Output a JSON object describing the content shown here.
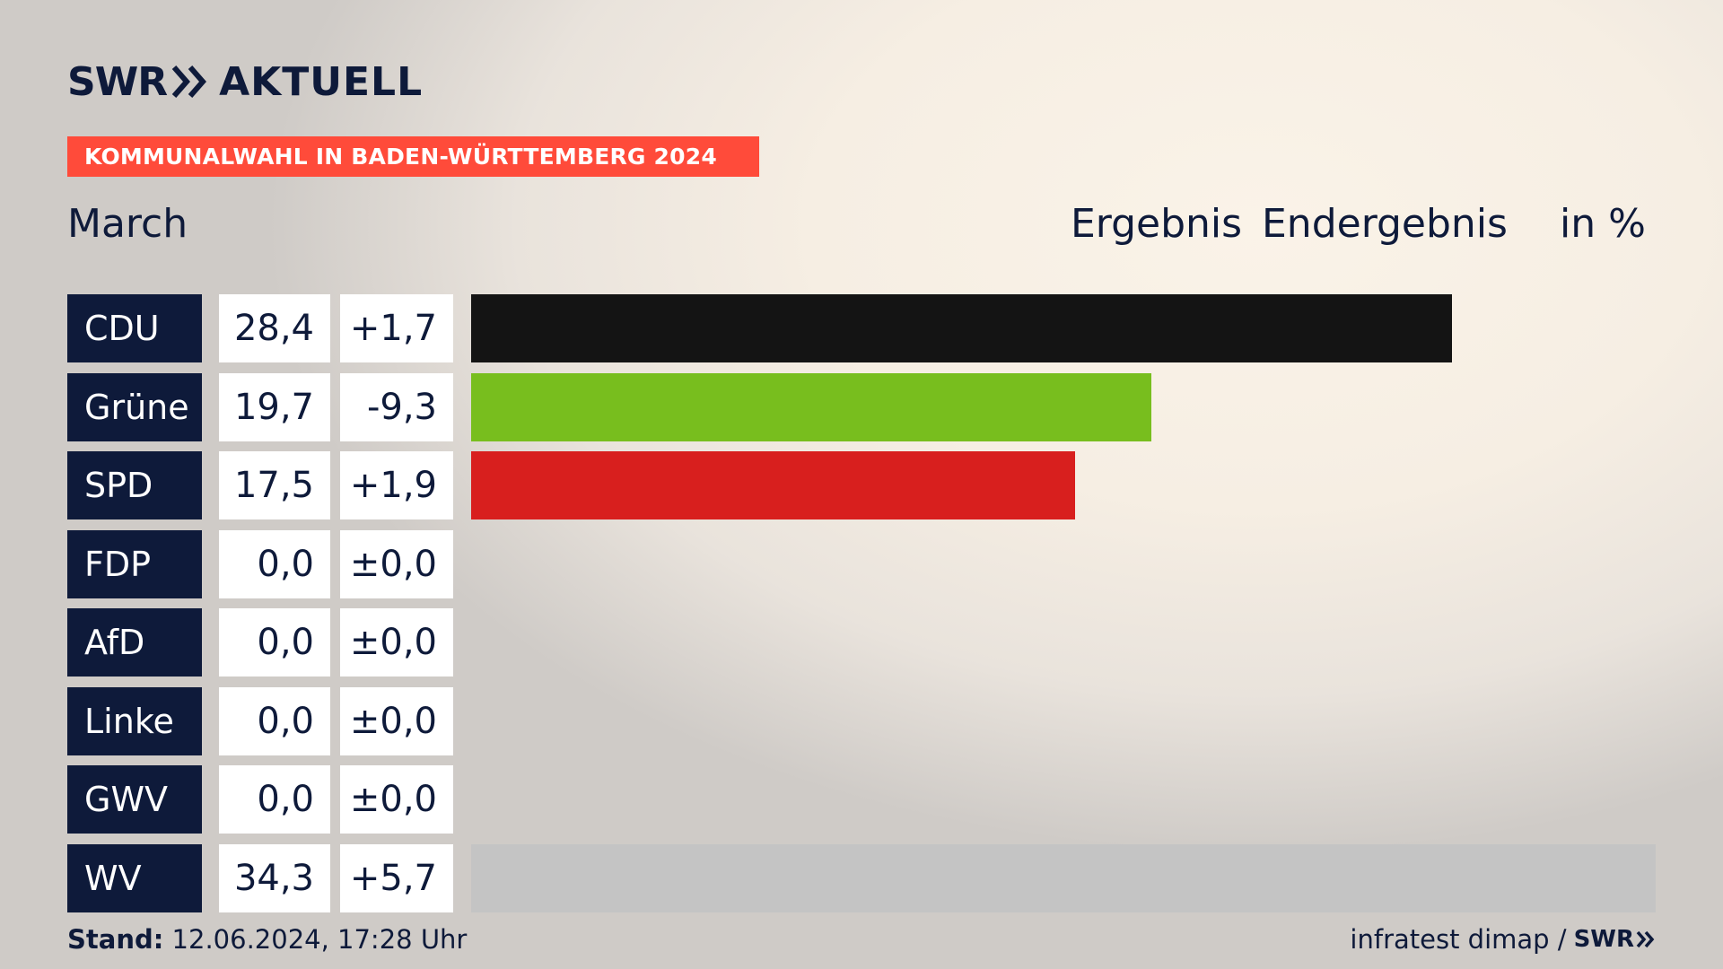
{
  "brand": {
    "logo_left": "SWR",
    "logo_right": "AKTUELL"
  },
  "banner": "KOMMUNALWAHL IN BADEN-WÜRTTEMBERG 2024",
  "place": "March",
  "headers": {
    "ergebnis": "Ergebnis",
    "endergebnis": "Endergebnis",
    "unit": "in %"
  },
  "chart_data": {
    "type": "bar",
    "categories": [
      "CDU",
      "Grüne",
      "SPD",
      "FDP",
      "AfD",
      "Linke",
      "GWV",
      "WV"
    ],
    "values": [
      28.4,
      19.7,
      17.5,
      0.0,
      0.0,
      0.0,
      0.0,
      34.3
    ],
    "value_labels": [
      "28,4",
      "19,7",
      "17,5",
      "0,0",
      "0,0",
      "0,0",
      "0,0",
      "34,3"
    ],
    "diff_labels": [
      "+1,7",
      "-9,3",
      "+1,9",
      "±0,0",
      "±0,0",
      "±0,0",
      "±0,0",
      "+5,7"
    ],
    "colors": [
      "#141414",
      "#78be1e",
      "#d81f1e",
      "#ffd600",
      "#009ee0",
      "#be3075",
      "#7a7a7a",
      "#c4c4c4"
    ],
    "xlim": [
      0,
      34.3
    ]
  },
  "footer": {
    "stand_label": "Stand:",
    "stand_value": "12.06.2024, 17:28 Uhr",
    "source": "infratest dimap /",
    "source_brand": "SWR"
  }
}
